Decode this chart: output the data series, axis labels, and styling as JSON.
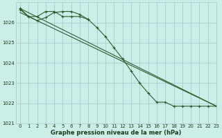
{
  "title": "Graphe pression niveau de la mer (hPa)",
  "background_color": "#cceee8",
  "grid_color": "#aacccc",
  "line_color": "#2d5a2d",
  "marker_color": "#2d5a2d",
  "xlim": [
    -0.5,
    23
  ],
  "ylim": [
    1021.0,
    1027.0
  ],
  "yticks": [
    1021,
    1022,
    1023,
    1024,
    1025,
    1026
  ],
  "xticks": [
    0,
    1,
    2,
    3,
    4,
    5,
    6,
    7,
    8,
    9,
    10,
    11,
    12,
    13,
    14,
    15,
    16,
    17,
    18,
    19,
    20,
    21,
    22,
    23
  ],
  "series": [
    {
      "x": [
        0,
        1,
        2,
        3,
        4,
        5,
        6,
        7,
        8,
        9,
        10,
        11,
        12,
        13,
        14,
        15,
        16,
        17,
        18,
        19,
        20,
        21,
        22,
        23
      ],
      "y": [
        1026.7,
        1026.3,
        1026.1,
        1026.25,
        1026.5,
        1026.55,
        1026.55,
        1026.4,
        1026.15,
        1025.75,
        1025.3,
        1024.75,
        1024.2,
        1023.6,
        1023.0,
        1022.5,
        1022.05,
        1022.05,
        1021.85,
        1021.85,
        1021.85,
        1021.85,
        1021.85,
        1021.85
      ],
      "has_markers": true
    },
    {
      "x": [
        0,
        23
      ],
      "y": [
        1026.7,
        1021.85
      ],
      "has_markers": false
    },
    {
      "x": [
        0,
        23
      ],
      "y": [
        1026.5,
        1021.85
      ],
      "has_markers": false
    },
    {
      "x": [
        0,
        1,
        2,
        3,
        4,
        5,
        6,
        7,
        8
      ],
      "y": [
        1026.65,
        1026.3,
        1026.3,
        1026.55,
        1026.55,
        1026.3,
        1026.3,
        1026.3,
        1026.15
      ],
      "has_markers": true
    }
  ]
}
